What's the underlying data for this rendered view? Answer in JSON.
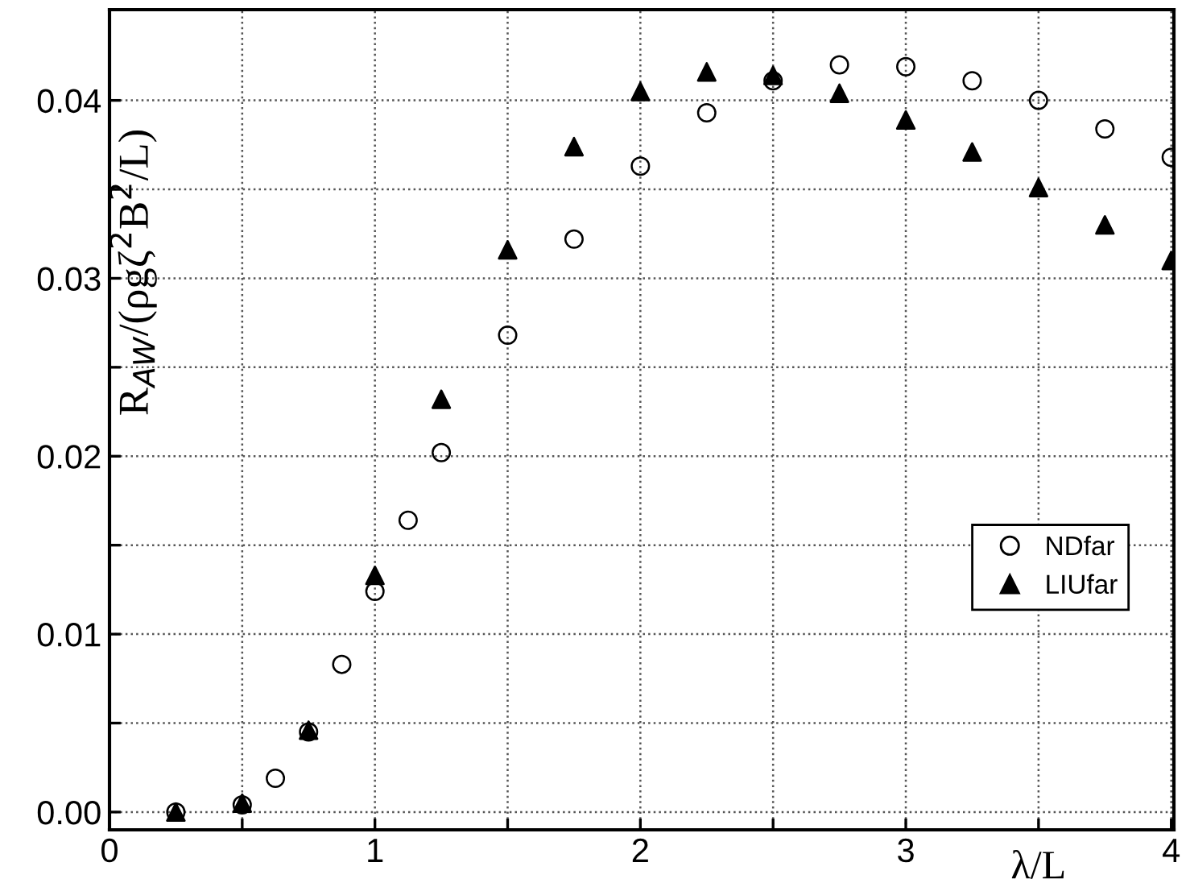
{
  "chart_data": {
    "type": "scatter",
    "xlabel": "λ/L",
    "ylabel": "R$_{AW}$/(ρgζ$^{2}$B$^{2}$/L)",
    "series": [
      {
        "name": "NDfar",
        "color": "#000000",
        "marker": "circle",
        "x": [
          0.25,
          0.5,
          0.625,
          0.75,
          0.875,
          1.0,
          1.125,
          1.25,
          1.5,
          1.75,
          2.0,
          2.25,
          2.5,
          2.75,
          3.0,
          3.25,
          3.5,
          3.75,
          4.0
        ],
        "values": [
          0.0,
          0.0004,
          0.0019,
          0.0045,
          0.0083,
          0.0124,
          0.0164,
          0.0202,
          0.0268,
          0.0322,
          0.0363,
          0.0393,
          0.0411,
          0.042,
          0.0419,
          0.0411,
          0.04,
          0.0384,
          0.0368
        ]
      },
      {
        "name": "LIUfar",
        "color": "#000000",
        "marker": "triangle",
        "x": [
          0.25,
          0.5,
          0.75,
          1.0,
          1.25,
          1.5,
          1.75,
          2.0,
          2.25,
          2.5,
          2.75,
          3.0,
          3.25,
          3.5,
          3.75,
          4.0
        ],
        "values": [
          0.0,
          0.0005,
          0.0046,
          0.0133,
          0.0232,
          0.0316,
          0.0374,
          0.0405,
          0.0416,
          0.0414,
          0.0404,
          0.0389,
          0.0371,
          0.0351,
          0.033,
          0.031
        ]
      }
    ],
    "xlim": [
      0,
      4.01
    ],
    "xticks": [
      0,
      {
        "value": 0.5,
        "label": null
      },
      1,
      {
        "value": 1.5,
        "label": null
      },
      2,
      {
        "value": 2.5,
        "label": null
      },
      3,
      {
        "value": 3.5,
        "label": null
      },
      4
    ],
    "ylim": [
      -0.001,
      0.0451
    ],
    "yticks": [
      {
        "value": 0,
        "label": "0.00"
      },
      {
        "value": 0.005,
        "label": null
      },
      {
        "value": 0.01,
        "label": "0.01"
      },
      {
        "value": 0.015,
        "label": null
      },
      {
        "value": 0.02,
        "label": "0.02"
      },
      {
        "value": 0.025,
        "label": null
      },
      {
        "value": 0.03,
        "label": "0.03"
      },
      {
        "value": 0.035,
        "label": null
      },
      {
        "value": 0.04,
        "label": "0.04"
      }
    ],
    "grid": true,
    "legend": "center right"
  }
}
